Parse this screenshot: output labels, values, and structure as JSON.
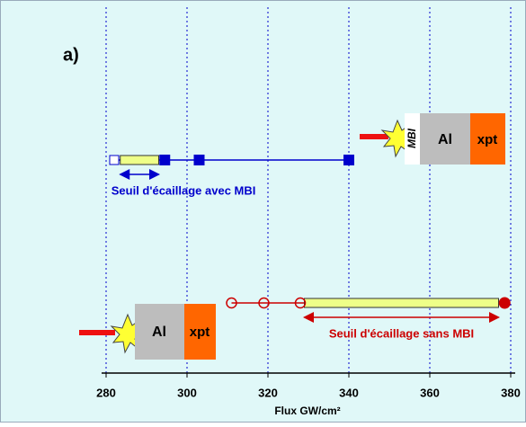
{
  "chart_data": {
    "type": "scatter",
    "panel_label": "a)",
    "xlabel": "Flux GW/cm²",
    "xlim": [
      280,
      380
    ],
    "xticks": [
      280,
      300,
      320,
      340,
      360,
      380
    ],
    "grid": true,
    "series": [
      {
        "name": "Seuil d'écaillage avec MBI",
        "color": "#0000cc",
        "x_open": [
          282
        ],
        "x_filled": [
          294.5,
          303,
          340
        ],
        "range": [
          283.5,
          293
        ]
      },
      {
        "name": "Seuil d'écaillage sans MBI",
        "color": "#cc0000",
        "x_open": [
          311,
          319,
          328
        ],
        "x_filled": [
          378.5
        ],
        "range": [
          329,
          377
        ]
      }
    ],
    "targets": [
      {
        "layers": [
          "MBI",
          "Al",
          "xpt"
        ]
      },
      {
        "layers": [
          "Al",
          "xpt"
        ]
      }
    ]
  }
}
